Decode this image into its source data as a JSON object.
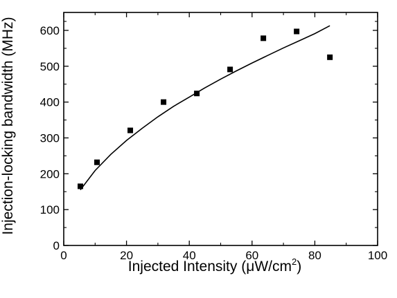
{
  "chart_data": {
    "type": "scatter",
    "xlabel": {
      "prefix": "Injected Intensity (",
      "mu": "μ",
      "unit": "W/cm",
      "sup": "2",
      "suffix": ")"
    },
    "ylabel": "Injection-locking bandwidth (MHz)",
    "xlim": [
      0,
      100
    ],
    "ylim": [
      0,
      650
    ],
    "xticks": [
      0,
      20,
      40,
      60,
      80,
      100
    ],
    "yticks": [
      0,
      100,
      200,
      300,
      400,
      500,
      600
    ],
    "xtick_labels": [
      "0",
      "20",
      "40",
      "60",
      "80",
      "100"
    ],
    "ytick_labels": [
      "0",
      "100",
      "200",
      "300",
      "400",
      "500",
      "600"
    ],
    "grid": false,
    "legend": "none",
    "series": [
      {
        "kind": "scatter",
        "marker": "square",
        "color": "#000000",
        "points": [
          {
            "x": 5.3,
            "y": 165
          },
          {
            "x": 10.6,
            "y": 232
          },
          {
            "x": 21.2,
            "y": 321
          },
          {
            "x": 31.8,
            "y": 400
          },
          {
            "x": 42.4,
            "y": 424
          },
          {
            "x": 53.0,
            "y": 491
          },
          {
            "x": 63.6,
            "y": 578
          },
          {
            "x": 74.2,
            "y": 597
          },
          {
            "x": 84.8,
            "y": 525
          }
        ]
      },
      {
        "kind": "fit-line",
        "color": "#000000",
        "points": [
          {
            "x": 5.3,
            "y": 155
          },
          {
            "x": 10,
            "y": 209
          },
          {
            "x": 15,
            "y": 254
          },
          {
            "x": 20,
            "y": 293
          },
          {
            "x": 25,
            "y": 327
          },
          {
            "x": 30,
            "y": 359
          },
          {
            "x": 35,
            "y": 388
          },
          {
            "x": 40,
            "y": 414
          },
          {
            "x": 45,
            "y": 440
          },
          {
            "x": 50,
            "y": 464
          },
          {
            "x": 55,
            "y": 487
          },
          {
            "x": 60,
            "y": 509
          },
          {
            "x": 65,
            "y": 530
          },
          {
            "x": 70,
            "y": 551
          },
          {
            "x": 75,
            "y": 571
          },
          {
            "x": 80,
            "y": 591
          },
          {
            "x": 84.8,
            "y": 613
          }
        ]
      }
    ]
  }
}
